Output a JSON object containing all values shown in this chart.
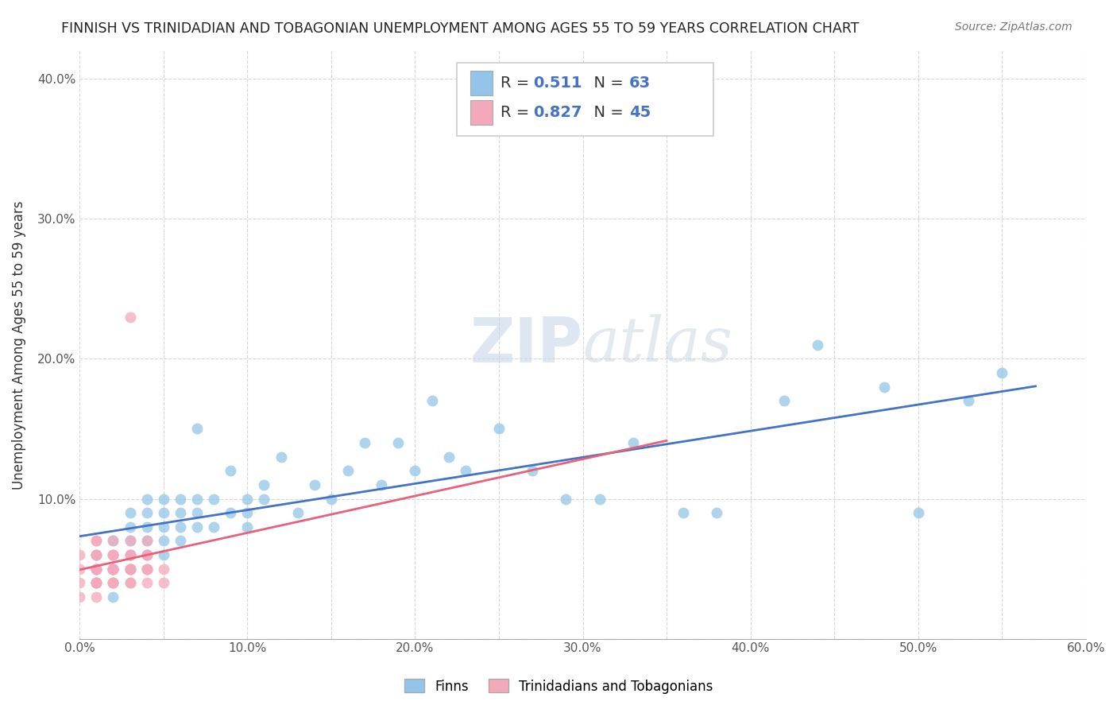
{
  "title": "FINNISH VS TRINIDADIAN AND TOBAGONIAN UNEMPLOYMENT AMONG AGES 55 TO 59 YEARS CORRELATION CHART",
  "source": "Source: ZipAtlas.com",
  "ylabel": "Unemployment Among Ages 55 to 59 years",
  "xlim": [
    0.0,
    0.6
  ],
  "ylim": [
    0.0,
    0.42
  ],
  "xtick_labels": [
    "0.0%",
    "",
    "10.0%",
    "",
    "20.0%",
    "",
    "30.0%",
    "",
    "40.0%",
    "",
    "50.0%",
    "",
    "60.0%"
  ],
  "xtick_values": [
    0.0,
    0.05,
    0.1,
    0.15,
    0.2,
    0.25,
    0.3,
    0.35,
    0.4,
    0.45,
    0.5,
    0.55,
    0.6
  ],
  "ytick_labels": [
    "",
    "10.0%",
    "20.0%",
    "30.0%",
    "40.0%"
  ],
  "ytick_values": [
    0.0,
    0.1,
    0.2,
    0.3,
    0.4
  ],
  "finn_R": 0.511,
  "finn_N": 63,
  "tnt_R": 0.827,
  "tnt_N": 45,
  "finn_color": "#92C5E8",
  "tnt_color": "#F4A8BB",
  "finn_line_color": "#4472C4",
  "tnt_line_color": "#E8607A",
  "legend_text_color": "#4472C4",
  "watermark": "ZIPatlas",
  "background_color": "#FFFFFF",
  "grid_color": "#CCCCCC",
  "finn_scatter_x": [
    0.01,
    0.01,
    0.02,
    0.02,
    0.02,
    0.02,
    0.03,
    0.03,
    0.03,
    0.03,
    0.03,
    0.04,
    0.04,
    0.04,
    0.04,
    0.04,
    0.05,
    0.05,
    0.05,
    0.05,
    0.05,
    0.06,
    0.06,
    0.06,
    0.06,
    0.07,
    0.07,
    0.07,
    0.07,
    0.08,
    0.08,
    0.09,
    0.09,
    0.1,
    0.1,
    0.1,
    0.11,
    0.11,
    0.12,
    0.13,
    0.14,
    0.15,
    0.16,
    0.17,
    0.18,
    0.19,
    0.2,
    0.21,
    0.22,
    0.23,
    0.25,
    0.27,
    0.29,
    0.31,
    0.33,
    0.36,
    0.38,
    0.42,
    0.44,
    0.48,
    0.5,
    0.53,
    0.55
  ],
  "finn_scatter_y": [
    0.04,
    0.06,
    0.03,
    0.05,
    0.07,
    0.05,
    0.05,
    0.06,
    0.07,
    0.08,
    0.09,
    0.06,
    0.07,
    0.08,
    0.09,
    0.1,
    0.06,
    0.07,
    0.08,
    0.09,
    0.1,
    0.07,
    0.08,
    0.09,
    0.1,
    0.08,
    0.09,
    0.1,
    0.15,
    0.08,
    0.1,
    0.09,
    0.12,
    0.09,
    0.1,
    0.08,
    0.1,
    0.11,
    0.13,
    0.09,
    0.11,
    0.1,
    0.12,
    0.14,
    0.11,
    0.14,
    0.12,
    0.17,
    0.13,
    0.12,
    0.15,
    0.12,
    0.1,
    0.1,
    0.14,
    0.09,
    0.09,
    0.17,
    0.21,
    0.18,
    0.09,
    0.17,
    0.19
  ],
  "tnt_scatter_x": [
    0.0,
    0.0,
    0.0,
    0.0,
    0.01,
    0.01,
    0.01,
    0.01,
    0.01,
    0.01,
    0.01,
    0.01,
    0.01,
    0.01,
    0.01,
    0.01,
    0.02,
    0.02,
    0.02,
    0.02,
    0.02,
    0.02,
    0.02,
    0.02,
    0.02,
    0.02,
    0.02,
    0.03,
    0.03,
    0.03,
    0.03,
    0.03,
    0.03,
    0.03,
    0.03,
    0.03,
    0.04,
    0.04,
    0.04,
    0.04,
    0.04,
    0.04,
    0.04,
    0.05,
    0.05
  ],
  "tnt_scatter_y": [
    0.03,
    0.04,
    0.05,
    0.06,
    0.03,
    0.04,
    0.05,
    0.06,
    0.07,
    0.05,
    0.04,
    0.06,
    0.05,
    0.07,
    0.04,
    0.05,
    0.04,
    0.05,
    0.06,
    0.05,
    0.04,
    0.06,
    0.05,
    0.07,
    0.04,
    0.05,
    0.06,
    0.04,
    0.05,
    0.06,
    0.05,
    0.07,
    0.04,
    0.06,
    0.23,
    0.05,
    0.05,
    0.06,
    0.05,
    0.04,
    0.06,
    0.05,
    0.07,
    0.04,
    0.05
  ]
}
